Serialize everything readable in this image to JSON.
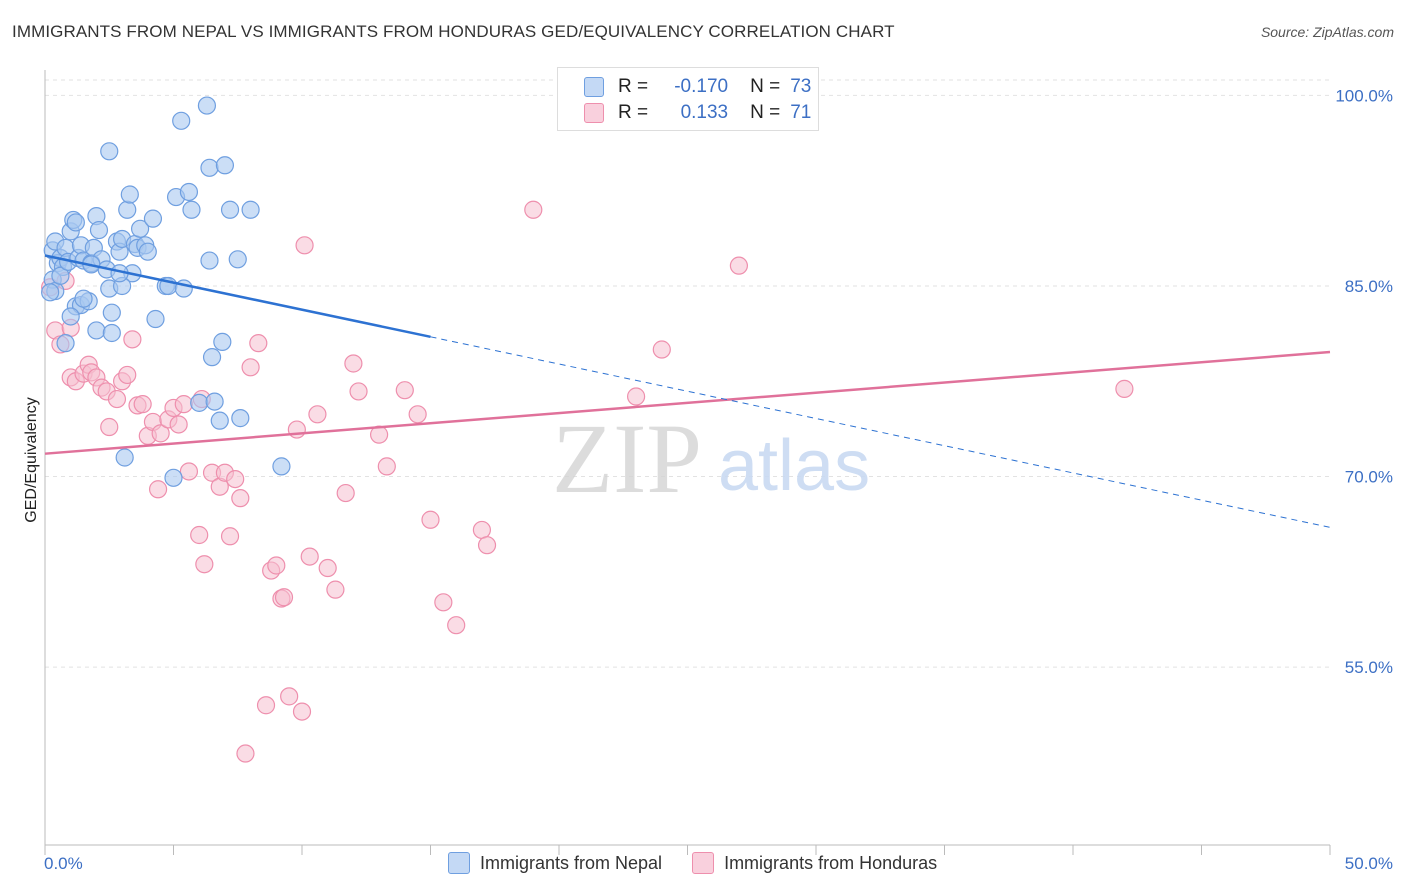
{
  "header": {
    "title": "IMMIGRANTS FROM NEPAL VS IMMIGRANTS FROM HONDURAS GED/EQUIVALENCY CORRELATION CHART",
    "source": "Source: ZipAtlas.com"
  },
  "watermark": {
    "zip": "ZIP",
    "atlas": "atlas"
  },
  "legend": {
    "nepal": {
      "r_label": "R =",
      "r_value": "-0.170",
      "n_label": "N =",
      "n_value": "73"
    },
    "honduras": {
      "r_label": "R =",
      "r_value": "0.133",
      "n_label": "N =",
      "n_value": "71"
    }
  },
  "colors": {
    "nepal_fill": "#a9c8f0",
    "nepal_stroke": "#6f9fe0",
    "nepal_line": "#2d72d2",
    "honduras_fill": "#f6bfd0",
    "honduras_stroke": "#ee8fad",
    "honduras_line": "#e0719a",
    "grid": "#e2e2e2",
    "tick": "#3c6fc4"
  },
  "chart_data": {
    "type": "scatter",
    "title": "IMMIGRANTS FROM NEPAL VS IMMIGRANTS FROM HONDURAS GED/EQUIVALENCY CORRELATION CHART",
    "xlabel": "",
    "ylabel": "GED/Equivalency",
    "xlim": [
      0,
      50
    ],
    "ylim": [
      41,
      102
    ],
    "x_tick_labels": [
      "0.0%",
      "50.0%"
    ],
    "y_ticks": [
      100,
      85,
      70,
      55
    ],
    "y_tick_labels": [
      "100.0%",
      "85.0%",
      "70.0%",
      "55.0%"
    ],
    "grid": true,
    "series": [
      {
        "name": "Immigrants from Nepal",
        "R": -0.17,
        "N": 73,
        "trend": {
          "x0": 0,
          "y0": 87.4,
          "x1": 15,
          "y1": 81.0,
          "dash_to_x": 50,
          "dash_to_y": 66.0
        },
        "points": [
          [
            0.3,
            87.8
          ],
          [
            0.4,
            88.5
          ],
          [
            0.5,
            86.8
          ],
          [
            0.6,
            87.2
          ],
          [
            0.7,
            86.5
          ],
          [
            0.8,
            88.0
          ],
          [
            0.3,
            85.5
          ],
          [
            0.4,
            84.6
          ],
          [
            0.6,
            85.8
          ],
          [
            0.9,
            86.9
          ],
          [
            1.0,
            89.3
          ],
          [
            1.1,
            90.2
          ],
          [
            1.2,
            90.0
          ],
          [
            1.3,
            87.2
          ],
          [
            1.4,
            88.2
          ],
          [
            1.5,
            87.0
          ],
          [
            1.2,
            83.4
          ],
          [
            1.4,
            83.5
          ],
          [
            1.7,
            83.8
          ],
          [
            1.8,
            86.8
          ],
          [
            1.9,
            88.0
          ],
          [
            2.0,
            90.5
          ],
          [
            2.1,
            89.4
          ],
          [
            2.2,
            87.1
          ],
          [
            2.4,
            86.3
          ],
          [
            2.5,
            84.8
          ],
          [
            2.0,
            81.5
          ],
          [
            2.6,
            82.9
          ],
          [
            2.6,
            81.3
          ],
          [
            2.8,
            88.5
          ],
          [
            2.9,
            87.7
          ],
          [
            3.0,
            88.7
          ],
          [
            3.2,
            91.0
          ],
          [
            3.3,
            92.2
          ],
          [
            3.4,
            86.0
          ],
          [
            3.5,
            88.3
          ],
          [
            3.6,
            88.0
          ],
          [
            3.7,
            89.5
          ],
          [
            3.0,
            85.0
          ],
          [
            3.9,
            88.2
          ],
          [
            4.0,
            87.7
          ],
          [
            4.2,
            90.3
          ],
          [
            2.5,
            95.6
          ],
          [
            4.7,
            85.0
          ],
          [
            4.8,
            85.0
          ],
          [
            5.1,
            92.0
          ],
          [
            5.4,
            84.8
          ],
          [
            5.3,
            98.0
          ],
          [
            5.6,
            92.4
          ],
          [
            5.7,
            91.0
          ],
          [
            6.0,
            75.8
          ],
          [
            6.4,
            87.0
          ],
          [
            6.5,
            79.4
          ],
          [
            6.6,
            75.9
          ],
          [
            6.9,
            80.6
          ],
          [
            6.4,
            94.3
          ],
          [
            6.8,
            74.4
          ],
          [
            7.0,
            94.5
          ],
          [
            7.2,
            91.0
          ],
          [
            7.5,
            87.1
          ],
          [
            7.6,
            74.6
          ],
          [
            8.0,
            91.0
          ],
          [
            9.2,
            70.8
          ],
          [
            3.1,
            71.5
          ],
          [
            4.3,
            82.4
          ],
          [
            5.0,
            69.9
          ],
          [
            6.3,
            99.2
          ],
          [
            0.2,
            84.5
          ],
          [
            1.0,
            82.6
          ],
          [
            1.8,
            86.7
          ],
          [
            2.9,
            86.0
          ],
          [
            0.8,
            80.5
          ],
          [
            1.5,
            84.0
          ]
        ]
      },
      {
        "name": "Immigrants from Honduras",
        "R": 0.133,
        "N": 71,
        "trend": {
          "x0": 0,
          "y0": 71.8,
          "x1": 50,
          "y1": 79.8
        },
        "points": [
          [
            0.2,
            84.9
          ],
          [
            0.4,
            81.5
          ],
          [
            0.6,
            80.4
          ],
          [
            0.8,
            85.4
          ],
          [
            1.0,
            81.7
          ],
          [
            1.0,
            77.8
          ],
          [
            1.2,
            77.5
          ],
          [
            1.5,
            78.1
          ],
          [
            1.7,
            78.8
          ],
          [
            1.8,
            78.2
          ],
          [
            2.0,
            77.8
          ],
          [
            2.2,
            77.0
          ],
          [
            2.4,
            76.7
          ],
          [
            2.5,
            73.9
          ],
          [
            2.8,
            76.1
          ],
          [
            3.0,
            77.5
          ],
          [
            3.2,
            78.0
          ],
          [
            3.4,
            80.8
          ],
          [
            3.6,
            75.6
          ],
          [
            3.8,
            75.7
          ],
          [
            4.0,
            73.2
          ],
          [
            4.2,
            74.3
          ],
          [
            4.4,
            69.0
          ],
          [
            4.5,
            73.4
          ],
          [
            4.8,
            74.5
          ],
          [
            5.0,
            75.4
          ],
          [
            5.2,
            74.1
          ],
          [
            5.4,
            75.7
          ],
          [
            5.6,
            70.4
          ],
          [
            6.0,
            65.4
          ],
          [
            6.2,
            63.1
          ],
          [
            6.5,
            70.3
          ],
          [
            6.8,
            69.2
          ],
          [
            7.0,
            70.3
          ],
          [
            7.2,
            65.3
          ],
          [
            7.4,
            69.8
          ],
          [
            7.6,
            68.3
          ],
          [
            7.8,
            48.2
          ],
          [
            8.0,
            78.6
          ],
          [
            8.3,
            80.5
          ],
          [
            8.6,
            52.0
          ],
          [
            8.8,
            62.6
          ],
          [
            9.0,
            63.0
          ],
          [
            9.2,
            60.4
          ],
          [
            9.5,
            52.7
          ],
          [
            9.8,
            73.7
          ],
          [
            10.0,
            51.5
          ],
          [
            10.3,
            63.7
          ],
          [
            10.6,
            74.9
          ],
          [
            11.0,
            62.8
          ],
          [
            11.3,
            61.1
          ],
          [
            11.7,
            68.7
          ],
          [
            12.0,
            78.9
          ],
          [
            12.2,
            76.7
          ],
          [
            13.0,
            73.3
          ],
          [
            13.3,
            70.8
          ],
          [
            14.0,
            76.8
          ],
          [
            14.5,
            74.9
          ],
          [
            15.0,
            66.6
          ],
          [
            15.5,
            60.1
          ],
          [
            16.0,
            58.3
          ],
          [
            17.0,
            65.8
          ],
          [
            17.2,
            64.6
          ],
          [
            19.0,
            91.0
          ],
          [
            23.0,
            76.3
          ],
          [
            24.0,
            80.0
          ],
          [
            27.0,
            86.6
          ],
          [
            42.0,
            76.9
          ],
          [
            10.1,
            88.2
          ],
          [
            9.3,
            60.5
          ],
          [
            6.1,
            76.1
          ]
        ]
      }
    ]
  },
  "bottom_legend": {
    "nepal": "Immigrants from Nepal",
    "honduras": "Immigrants from Honduras"
  }
}
